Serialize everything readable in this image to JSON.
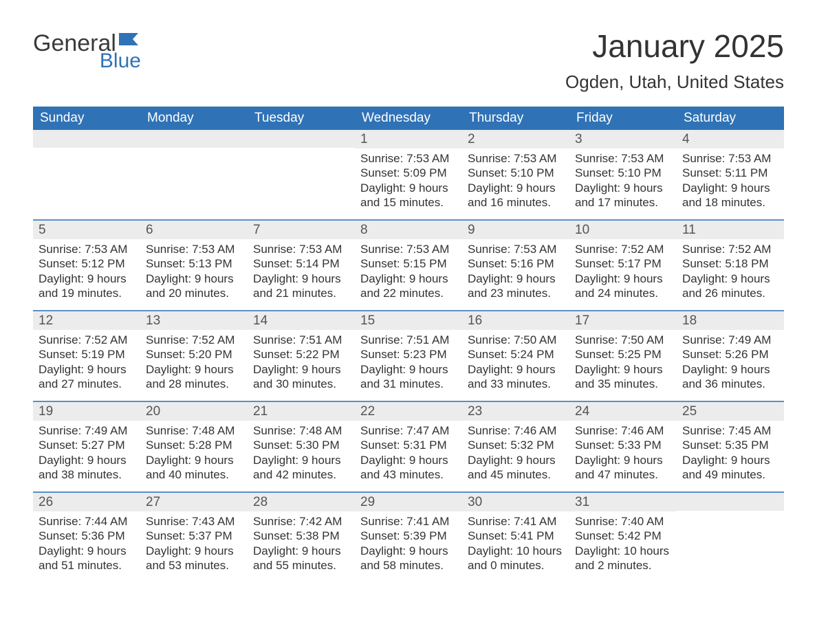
{
  "logo": {
    "word1": "General",
    "word2": "Blue"
  },
  "title": "January 2025",
  "location": "Ogden, Utah, United States",
  "colors": {
    "header_bg": "#2f72b6",
    "week_divider": "#5a8fc7",
    "daynum_bg": "#ececec",
    "text": "#333333",
    "logo_blue": "#2f72b6"
  },
  "weekdays": [
    "Sunday",
    "Monday",
    "Tuesday",
    "Wednesday",
    "Thursday",
    "Friday",
    "Saturday"
  ],
  "weeks": [
    [
      {
        "day": "",
        "sunrise": "",
        "sunset": "",
        "daylight1": "",
        "daylight2": ""
      },
      {
        "day": "",
        "sunrise": "",
        "sunset": "",
        "daylight1": "",
        "daylight2": ""
      },
      {
        "day": "",
        "sunrise": "",
        "sunset": "",
        "daylight1": "",
        "daylight2": ""
      },
      {
        "day": "1",
        "sunrise": "Sunrise: 7:53 AM",
        "sunset": "Sunset: 5:09 PM",
        "daylight1": "Daylight: 9 hours",
        "daylight2": "and 15 minutes."
      },
      {
        "day": "2",
        "sunrise": "Sunrise: 7:53 AM",
        "sunset": "Sunset: 5:10 PM",
        "daylight1": "Daylight: 9 hours",
        "daylight2": "and 16 minutes."
      },
      {
        "day": "3",
        "sunrise": "Sunrise: 7:53 AM",
        "sunset": "Sunset: 5:10 PM",
        "daylight1": "Daylight: 9 hours",
        "daylight2": "and 17 minutes."
      },
      {
        "day": "4",
        "sunrise": "Sunrise: 7:53 AM",
        "sunset": "Sunset: 5:11 PM",
        "daylight1": "Daylight: 9 hours",
        "daylight2": "and 18 minutes."
      }
    ],
    [
      {
        "day": "5",
        "sunrise": "Sunrise: 7:53 AM",
        "sunset": "Sunset: 5:12 PM",
        "daylight1": "Daylight: 9 hours",
        "daylight2": "and 19 minutes."
      },
      {
        "day": "6",
        "sunrise": "Sunrise: 7:53 AM",
        "sunset": "Sunset: 5:13 PM",
        "daylight1": "Daylight: 9 hours",
        "daylight2": "and 20 minutes."
      },
      {
        "day": "7",
        "sunrise": "Sunrise: 7:53 AM",
        "sunset": "Sunset: 5:14 PM",
        "daylight1": "Daylight: 9 hours",
        "daylight2": "and 21 minutes."
      },
      {
        "day": "8",
        "sunrise": "Sunrise: 7:53 AM",
        "sunset": "Sunset: 5:15 PM",
        "daylight1": "Daylight: 9 hours",
        "daylight2": "and 22 minutes."
      },
      {
        "day": "9",
        "sunrise": "Sunrise: 7:53 AM",
        "sunset": "Sunset: 5:16 PM",
        "daylight1": "Daylight: 9 hours",
        "daylight2": "and 23 minutes."
      },
      {
        "day": "10",
        "sunrise": "Sunrise: 7:52 AM",
        "sunset": "Sunset: 5:17 PM",
        "daylight1": "Daylight: 9 hours",
        "daylight2": "and 24 minutes."
      },
      {
        "day": "11",
        "sunrise": "Sunrise: 7:52 AM",
        "sunset": "Sunset: 5:18 PM",
        "daylight1": "Daylight: 9 hours",
        "daylight2": "and 26 minutes."
      }
    ],
    [
      {
        "day": "12",
        "sunrise": "Sunrise: 7:52 AM",
        "sunset": "Sunset: 5:19 PM",
        "daylight1": "Daylight: 9 hours",
        "daylight2": "and 27 minutes."
      },
      {
        "day": "13",
        "sunrise": "Sunrise: 7:52 AM",
        "sunset": "Sunset: 5:20 PM",
        "daylight1": "Daylight: 9 hours",
        "daylight2": "and 28 minutes."
      },
      {
        "day": "14",
        "sunrise": "Sunrise: 7:51 AM",
        "sunset": "Sunset: 5:22 PM",
        "daylight1": "Daylight: 9 hours",
        "daylight2": "and 30 minutes."
      },
      {
        "day": "15",
        "sunrise": "Sunrise: 7:51 AM",
        "sunset": "Sunset: 5:23 PM",
        "daylight1": "Daylight: 9 hours",
        "daylight2": "and 31 minutes."
      },
      {
        "day": "16",
        "sunrise": "Sunrise: 7:50 AM",
        "sunset": "Sunset: 5:24 PM",
        "daylight1": "Daylight: 9 hours",
        "daylight2": "and 33 minutes."
      },
      {
        "day": "17",
        "sunrise": "Sunrise: 7:50 AM",
        "sunset": "Sunset: 5:25 PM",
        "daylight1": "Daylight: 9 hours",
        "daylight2": "and 35 minutes."
      },
      {
        "day": "18",
        "sunrise": "Sunrise: 7:49 AM",
        "sunset": "Sunset: 5:26 PM",
        "daylight1": "Daylight: 9 hours",
        "daylight2": "and 36 minutes."
      }
    ],
    [
      {
        "day": "19",
        "sunrise": "Sunrise: 7:49 AM",
        "sunset": "Sunset: 5:27 PM",
        "daylight1": "Daylight: 9 hours",
        "daylight2": "and 38 minutes."
      },
      {
        "day": "20",
        "sunrise": "Sunrise: 7:48 AM",
        "sunset": "Sunset: 5:28 PM",
        "daylight1": "Daylight: 9 hours",
        "daylight2": "and 40 minutes."
      },
      {
        "day": "21",
        "sunrise": "Sunrise: 7:48 AM",
        "sunset": "Sunset: 5:30 PM",
        "daylight1": "Daylight: 9 hours",
        "daylight2": "and 42 minutes."
      },
      {
        "day": "22",
        "sunrise": "Sunrise: 7:47 AM",
        "sunset": "Sunset: 5:31 PM",
        "daylight1": "Daylight: 9 hours",
        "daylight2": "and 43 minutes."
      },
      {
        "day": "23",
        "sunrise": "Sunrise: 7:46 AM",
        "sunset": "Sunset: 5:32 PM",
        "daylight1": "Daylight: 9 hours",
        "daylight2": "and 45 minutes."
      },
      {
        "day": "24",
        "sunrise": "Sunrise: 7:46 AM",
        "sunset": "Sunset: 5:33 PM",
        "daylight1": "Daylight: 9 hours",
        "daylight2": "and 47 minutes."
      },
      {
        "day": "25",
        "sunrise": "Sunrise: 7:45 AM",
        "sunset": "Sunset: 5:35 PM",
        "daylight1": "Daylight: 9 hours",
        "daylight2": "and 49 minutes."
      }
    ],
    [
      {
        "day": "26",
        "sunrise": "Sunrise: 7:44 AM",
        "sunset": "Sunset: 5:36 PM",
        "daylight1": "Daylight: 9 hours",
        "daylight2": "and 51 minutes."
      },
      {
        "day": "27",
        "sunrise": "Sunrise: 7:43 AM",
        "sunset": "Sunset: 5:37 PM",
        "daylight1": "Daylight: 9 hours",
        "daylight2": "and 53 minutes."
      },
      {
        "day": "28",
        "sunrise": "Sunrise: 7:42 AM",
        "sunset": "Sunset: 5:38 PM",
        "daylight1": "Daylight: 9 hours",
        "daylight2": "and 55 minutes."
      },
      {
        "day": "29",
        "sunrise": "Sunrise: 7:41 AM",
        "sunset": "Sunset: 5:39 PM",
        "daylight1": "Daylight: 9 hours",
        "daylight2": "and 58 minutes."
      },
      {
        "day": "30",
        "sunrise": "Sunrise: 7:41 AM",
        "sunset": "Sunset: 5:41 PM",
        "daylight1": "Daylight: 10 hours",
        "daylight2": "and 0 minutes."
      },
      {
        "day": "31",
        "sunrise": "Sunrise: 7:40 AM",
        "sunset": "Sunset: 5:42 PM",
        "daylight1": "Daylight: 10 hours",
        "daylight2": "and 2 minutes."
      },
      {
        "day": "",
        "sunrise": "",
        "sunset": "",
        "daylight1": "",
        "daylight2": ""
      }
    ]
  ]
}
